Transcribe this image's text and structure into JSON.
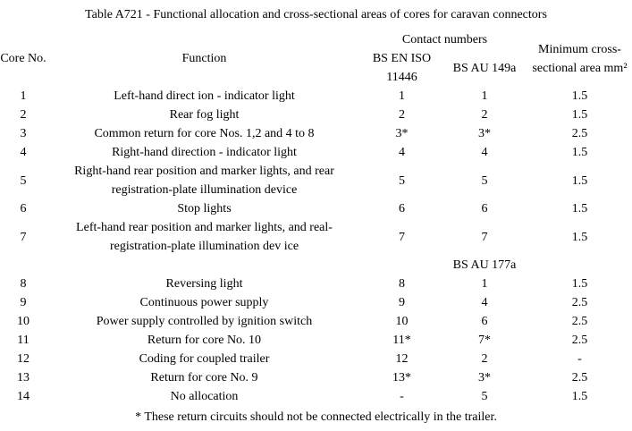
{
  "title": "Table A721 - Functional allocation and cross-sectional areas of cores for caravan connectors",
  "table": {
    "headers": {
      "core_no": "Core No.",
      "function": "Function",
      "contact_numbers": "Contact numbers",
      "col_bs_en_iso": "BS EN ISO 11446",
      "col_bs_au_149a": "BS AU 149a",
      "min_area": "Minimum cross-sectional area mm²"
    },
    "rows": [
      {
        "no": "1",
        "function": "Left-hand direct ion - indicator light",
        "iso": "1",
        "au": "1",
        "area": "1.5"
      },
      {
        "no": "2",
        "function": "Rear fog light",
        "iso": "2",
        "au": "2",
        "area": "1.5"
      },
      {
        "no": "3",
        "function": "Common return for core Nos. 1,2 and 4 to 8",
        "iso": "3*",
        "au": "3*",
        "area": "2.5"
      },
      {
        "no": "4",
        "function": "Right-hand direction - indicator light",
        "iso": "4",
        "au": "4",
        "area": "1.5"
      },
      {
        "no": "5",
        "function": "Right-hand rear position and marker lights, and rear registration-plate illumination device",
        "iso": "5",
        "au": "5",
        "area": "1.5"
      },
      {
        "no": "6",
        "function": "Stop lights",
        "iso": "6",
        "au": "6",
        "area": "1.5"
      },
      {
        "no": "7",
        "function": "Left-hand rear position and marker lights, and real-registration-plate illumination dev ice",
        "iso": "7",
        "au": "7",
        "area": "1.5"
      },
      {
        "subheader": "BS AU 177a"
      },
      {
        "no": "8",
        "function": "Reversing light",
        "iso": "8",
        "au": "1",
        "area": "1.5"
      },
      {
        "no": "9",
        "function": "Continuous power supply",
        "iso": "9",
        "au": "4",
        "area": "2.5"
      },
      {
        "no": "10",
        "function": "Power supply controlled by ignition switch",
        "iso": "10",
        "au": "6",
        "area": "2.5"
      },
      {
        "no": "11",
        "function": "Return for core No. 10",
        "iso": "11*",
        "au": "7*",
        "area": "2.5"
      },
      {
        "no": "12",
        "function": "Coding for coupled trailer",
        "iso": "12",
        "au": "2",
        "area": "-"
      },
      {
        "no": "13",
        "function": "Return for core No. 9",
        "iso": "13*",
        "au": "3*",
        "area": "2.5"
      },
      {
        "no": "14",
        "function": "No allocation",
        "iso": "-",
        "au": "5",
        "area": "1.5"
      }
    ],
    "footnote": "* These return circuits should not be connected electrically in the trailer."
  }
}
